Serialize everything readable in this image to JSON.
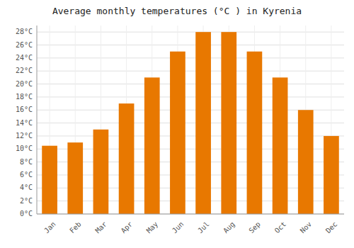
{
  "chart_data": {
    "type": "bar",
    "title": "Average monthly temperatures (°C ) in Kyrenia",
    "categories": [
      "Jan",
      "Feb",
      "Mar",
      "Apr",
      "May",
      "Jun",
      "Jul",
      "Aug",
      "Sep",
      "Oct",
      "Nov",
      "Dec"
    ],
    "values": [
      10.5,
      11.0,
      13.0,
      17.0,
      21.0,
      25.0,
      28.0,
      28.0,
      25.0,
      21.0,
      16.0,
      12.0
    ],
    "color": "#E87800",
    "ylim": [
      0,
      29
    ],
    "yticks": [
      {
        "value": 0,
        "label": "0°C"
      },
      {
        "value": 2,
        "label": "2°C"
      },
      {
        "value": 4,
        "label": "4°C"
      },
      {
        "value": 6,
        "label": "6°C"
      },
      {
        "value": 8,
        "label": "8°C"
      },
      {
        "value": 10,
        "label": "10°C"
      },
      {
        "value": 12,
        "label": "12°C"
      },
      {
        "value": 14,
        "label": "14°C"
      },
      {
        "value": 16,
        "label": "16°C"
      },
      {
        "value": 18,
        "label": "18°C"
      },
      {
        "value": 20,
        "label": "20°C"
      },
      {
        "value": 22,
        "label": "22°C"
      },
      {
        "value": 24,
        "label": "24°C"
      },
      {
        "value": 26,
        "label": "26°C"
      },
      {
        "value": 28,
        "label": "28°C"
      }
    ],
    "grid": true
  }
}
